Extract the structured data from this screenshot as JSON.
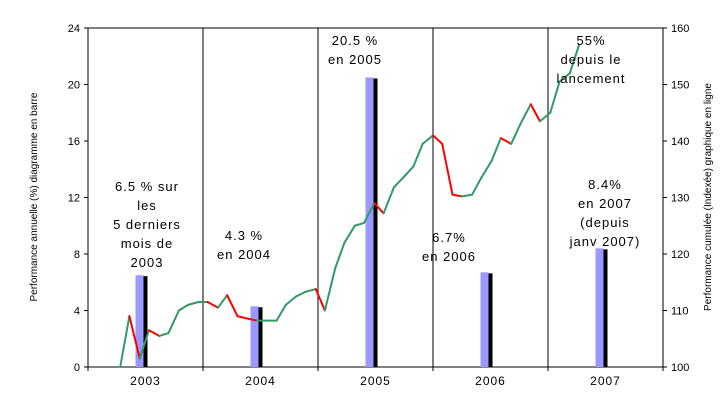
{
  "chart_data": {
    "type": "bar",
    "categories": [
      "2003",
      "2004",
      "2005",
      "2006",
      "2007"
    ],
    "values": [
      6.5,
      4.3,
      20.5,
      6.7,
      8.4
    ],
    "ylabel": "Performance annuelle (%) diagramme en barre",
    "ylabel_right": "Performance cumulée (Indexée) graphique en ligne",
    "ylim": [
      0,
      24
    ],
    "yticks": [
      "0",
      "4",
      "8",
      "12",
      "16",
      "20",
      "24"
    ],
    "ylim_right": [
      100,
      160
    ],
    "yticks_right": [
      "100",
      "110",
      "120",
      "130",
      "140",
      "150",
      "160"
    ],
    "grid": false,
    "colors": {
      "bar_front": "#9999ff",
      "bar_shadow": "#000000",
      "line_up": "#339966",
      "line_down": "#ff0000"
    },
    "annotations": [
      [
        "6.5 % sur",
        "les",
        "5 derniers",
        "mois de",
        "2003"
      ],
      [
        "4.3 %",
        "en 2004"
      ],
      [
        "20.5 %",
        "en 2005"
      ],
      [
        "6.7%",
        "en 2006"
      ],
      [
        "55%",
        "depuis le",
        "lancement"
      ],
      [
        "8.4%",
        "en 2007",
        "(depuis",
        "janv 2007)"
      ]
    ],
    "line_series": {
      "x": [
        0.28,
        0.36,
        0.45,
        0.53,
        0.62,
        0.7,
        0.79,
        0.87,
        0.96,
        1.04,
        1.13,
        1.21,
        1.3,
        1.38,
        1.47,
        1.55,
        1.64,
        1.72,
        1.81,
        1.89,
        1.98,
        2.06,
        2.15,
        2.23,
        2.32,
        2.4,
        2.49,
        2.57,
        2.66,
        2.74,
        2.83,
        2.91,
        3.0,
        3.08,
        3.17,
        3.25,
        3.34,
        3.42,
        3.51,
        3.59,
        3.68,
        3.76,
        3.85,
        3.93,
        4.02,
        4.1,
        4.19,
        4.27
      ],
      "y": [
        100,
        109,
        101.5,
        106.5,
        105.5,
        106,
        110,
        111,
        111.5,
        111.5,
        110.5,
        112.7,
        109,
        108.6,
        108.2,
        108.2,
        108.2,
        111,
        112.5,
        113.3,
        113.8,
        110,
        117.5,
        122,
        125,
        125.5,
        129,
        127.2,
        131.8,
        133.5,
        135.5,
        139.5,
        141,
        139.5,
        130.5,
        130.2,
        130.5,
        133.5,
        136.5,
        140.5,
        139.5,
        143,
        146.5,
        143.5,
        145,
        150.5,
        152,
        157
      ]
    }
  }
}
